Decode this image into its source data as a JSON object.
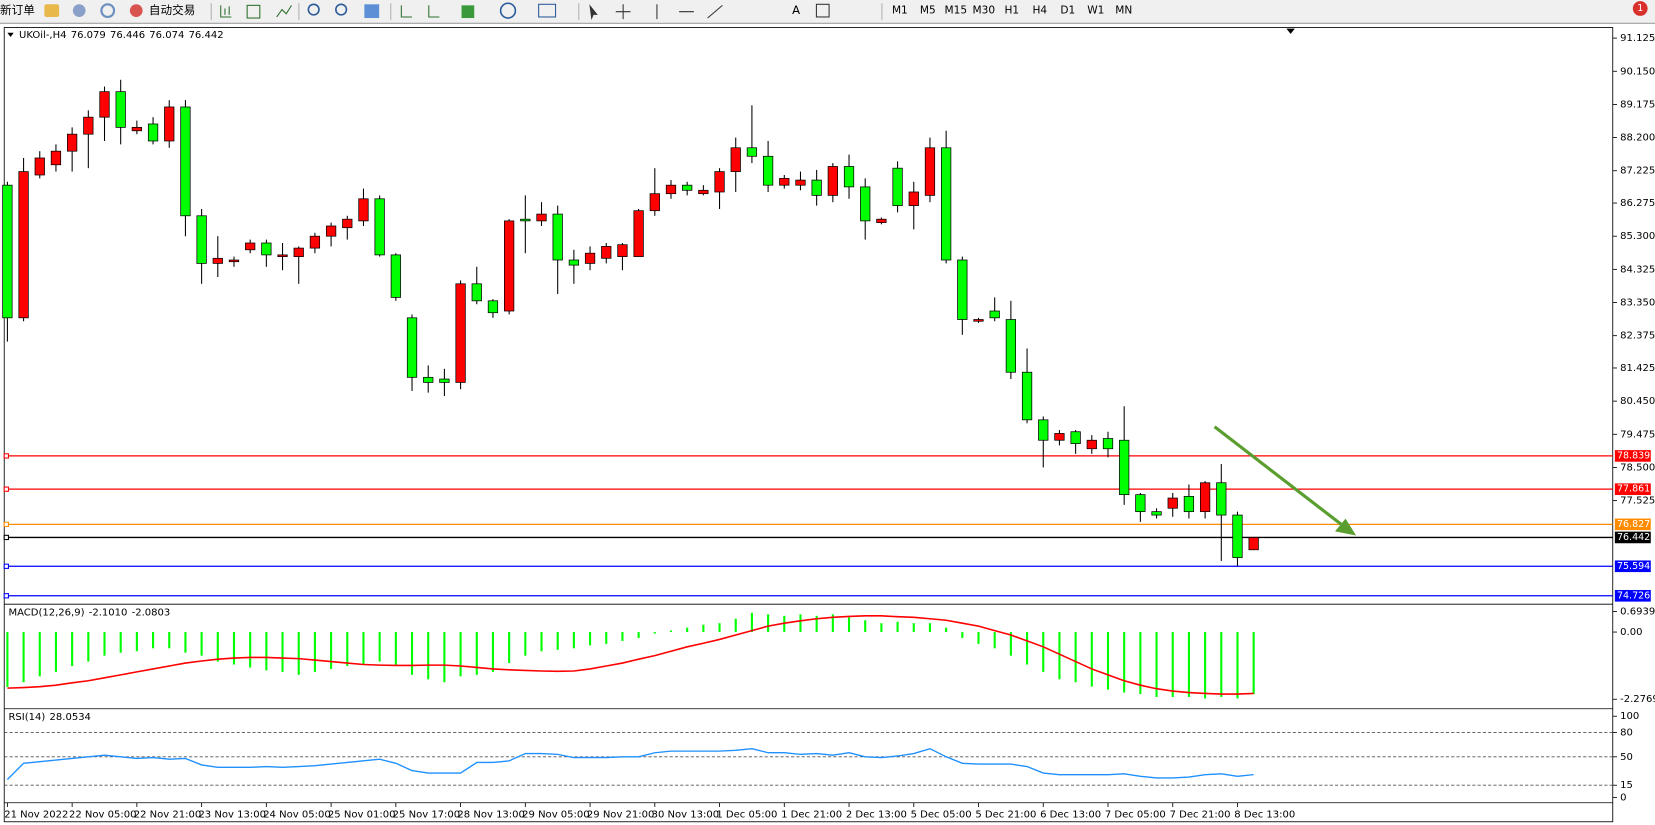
{
  "toolbar": {
    "new_order": "新订单",
    "auto_trading": "自动交易",
    "timeframes": [
      "M1",
      "M5",
      "M15",
      "M30",
      "H1",
      "H4",
      "D1",
      "W1",
      "MN"
    ]
  },
  "notifications": 1,
  "chart_data": [
    {
      "type": "candlestick",
      "title": "UKOil-,H4",
      "categories": [
        "21 Nov 2022",
        null,
        null,
        null,
        "22 Nov 05:00",
        null,
        null,
        null,
        "22 Nov 21:00",
        null,
        null,
        null,
        "23 Nov 13:00",
        null,
        null,
        null,
        "24 Nov 05:00",
        null,
        null,
        null,
        "25 Nov 01:00",
        null,
        null,
        null,
        "25 Nov 17:00",
        null,
        null,
        null,
        "28 Nov 13:00",
        null,
        null,
        null,
        "29 Nov 05:00",
        null,
        null,
        null,
        "29 Nov 21:00",
        null,
        null,
        null,
        "30 Nov 13:00",
        null,
        null,
        null,
        "1 Dec 05:00",
        null,
        null,
        null,
        "1 Dec 21:00",
        null,
        null,
        null,
        "2 Dec 13:00",
        null,
        null,
        null,
        "5 Dec 05:00",
        null,
        null,
        null,
        "5 Dec 21:00",
        null,
        null,
        null,
        "6 Dec 13:00",
        null,
        null,
        null,
        "7 Dec 05:00",
        null,
        null,
        null,
        "7 Dec 21:00",
        null,
        null,
        null,
        "8 Dec 13:00",
        null
      ],
      "open": [
        86.8,
        82.9,
        87.1,
        87.4,
        87.8,
        88.3,
        88.8,
        89.55,
        88.4,
        88.6,
        88.1,
        89.1,
        85.9,
        84.5,
        84.55,
        84.9,
        85.1,
        84.7,
        84.7,
        84.95,
        85.3,
        85.55,
        85.75,
        86.4,
        84.75,
        82.9,
        81.15,
        81.1,
        81.0,
        83.9,
        83.4,
        83.1,
        85.8,
        85.75,
        85.95,
        84.6,
        84.5,
        84.65,
        84.7,
        84.7,
        86.05,
        86.55,
        86.8,
        86.55,
        86.6,
        87.2,
        87.9,
        87.65,
        86.8,
        86.8,
        86.95,
        86.5,
        87.35,
        86.75,
        85.7,
        87.3,
        86.2,
        86.5,
        87.9,
        84.6,
        82.8,
        83.1,
        82.85,
        81.3,
        79.9,
        79.3,
        79.55,
        79.05,
        79.35,
        79.3,
        77.7,
        77.2,
        77.3,
        77.65,
        77.2,
        78.05,
        77.1,
        76.079
      ],
      "high": [
        86.9,
        87.6,
        87.8,
        88.0,
        88.5,
        89.0,
        89.7,
        89.9,
        88.7,
        88.8,
        89.3,
        89.3,
        86.1,
        85.3,
        84.7,
        85.2,
        85.2,
        85.1,
        85.0,
        85.4,
        85.7,
        85.9,
        86.7,
        86.5,
        84.8,
        83.0,
        81.5,
        81.4,
        84.0,
        84.4,
        83.45,
        85.8,
        86.5,
        86.3,
        86.2,
        84.9,
        85.0,
        85.1,
        85.1,
        86.1,
        87.3,
        86.95,
        86.9,
        86.8,
        87.3,
        88.2,
        89.15,
        88.1,
        87.1,
        87.2,
        87.25,
        87.45,
        87.7,
        87.0,
        85.85,
        87.5,
        86.9,
        88.2,
        88.4,
        84.7,
        82.9,
        83.5,
        83.4,
        82.0,
        80.0,
        79.6,
        79.6,
        79.45,
        79.55,
        80.3,
        77.75,
        77.3,
        77.75,
        78.0,
        78.1,
        78.6,
        77.2,
        76.446
      ],
      "low": [
        82.2,
        82.8,
        87.0,
        87.2,
        87.2,
        87.3,
        88.1,
        88.0,
        88.3,
        88.0,
        87.9,
        85.3,
        83.9,
        84.1,
        84.4,
        84.8,
        84.4,
        84.3,
        83.9,
        84.8,
        85.0,
        85.2,
        85.6,
        84.7,
        83.4,
        80.75,
        80.7,
        80.6,
        80.8,
        83.3,
        82.9,
        83.0,
        84.8,
        85.6,
        83.6,
        83.9,
        84.3,
        84.5,
        84.3,
        84.7,
        85.9,
        86.4,
        86.5,
        86.5,
        86.1,
        86.6,
        87.45,
        86.6,
        86.7,
        86.65,
        86.2,
        86.3,
        86.4,
        85.2,
        85.65,
        86.0,
        85.5,
        86.3,
        84.5,
        82.4,
        82.75,
        82.8,
        81.1,
        79.8,
        78.5,
        79.15,
        78.9,
        78.9,
        78.8,
        77.4,
        76.9,
        77.0,
        77.05,
        77.0,
        77.0,
        75.75,
        75.6,
        76.074
      ],
      "close": [
        82.9,
        87.2,
        87.6,
        87.8,
        88.3,
        88.8,
        89.55,
        88.5,
        88.5,
        88.1,
        89.1,
        85.9,
        84.5,
        84.65,
        84.6,
        85.1,
        84.75,
        84.75,
        84.95,
        85.3,
        85.6,
        85.8,
        86.4,
        84.75,
        83.5,
        81.15,
        81.0,
        81.0,
        83.9,
        83.4,
        83.05,
        85.75,
        85.75,
        85.95,
        84.6,
        84.45,
        84.8,
        85.0,
        85.05,
        86.05,
        86.55,
        86.8,
        86.65,
        86.65,
        87.2,
        87.9,
        87.65,
        86.8,
        87.0,
        86.95,
        86.5,
        87.35,
        86.75,
        85.75,
        85.8,
        86.2,
        86.6,
        87.9,
        84.6,
        82.85,
        82.85,
        82.9,
        81.3,
        79.9,
        79.3,
        79.5,
        79.2,
        79.3,
        79.05,
        77.7,
        77.2,
        77.1,
        77.6,
        77.2,
        78.05,
        77.1,
        75.85,
        76.442
      ],
      "up_color": "#ff0000",
      "down_color": "#00ff00",
      "ylim": [
        74.51,
        91.436
      ],
      "yticks": [
        91.125,
        {
          "value": 90.15,
          "label": "90.150"
        },
        89.175,
        {
          "value": 88.2,
          "label": "88.200"
        },
        87.225,
        86.275,
        {
          "value": 85.3,
          "label": "85.300"
        },
        84.325,
        {
          "value": 83.35,
          "label": "83.350"
        },
        82.375,
        81.425,
        {
          "value": 80.45,
          "label": "80.450"
        },
        79.475,
        {
          "value": 78.5,
          "label": "78.500"
        },
        77.525
      ],
      "levels": [
        {
          "value": 78.839,
          "color": "#ff0000"
        },
        {
          "value": 77.861,
          "color": "#ff0000"
        },
        {
          "value": 76.827,
          "color": "#ff8c00"
        },
        {
          "value": 76.442,
          "color": "#000000"
        },
        {
          "value": 75.594,
          "color": "#0000ff"
        },
        {
          "value": 74.726,
          "color": "#0000ff"
        }
      ]
    },
    {
      "type": "macd",
      "title": "MACD(12,26,9)",
      "series": [
        {
          "style": "histogram",
          "color": "#00ff00",
          "values": [
            -1.86,
            -1.7,
            -1.5,
            -1.35,
            -1.15,
            -1.0,
            -0.8,
            -0.7,
            -0.65,
            -0.55,
            -0.55,
            -0.7,
            -0.8,
            -1.0,
            -1.1,
            -1.2,
            -1.3,
            -1.35,
            -1.45,
            -1.35,
            -1.25,
            -1.15,
            -1.1,
            -1.0,
            -1.15,
            -1.45,
            -1.6,
            -1.7,
            -1.5,
            -1.45,
            -1.35,
            -1.05,
            -0.8,
            -0.65,
            -0.6,
            -0.55,
            -0.45,
            -0.4,
            -0.3,
            -0.2,
            -0.05,
            0.05,
            0.15,
            0.25,
            0.3,
            0.45,
            0.65,
            0.6,
            0.55,
            0.6,
            0.55,
            0.6,
            0.5,
            0.4,
            0.3,
            0.35,
            0.3,
            0.3,
            0.15,
            -0.2,
            -0.4,
            -0.55,
            -0.8,
            -1.1,
            -1.35,
            -1.6,
            -1.7,
            -1.85,
            -1.95,
            -2.05,
            -2.1,
            -2.2,
            -2.2,
            -2.2,
            -2.25,
            -2.2,
            -2.25,
            -2.101
          ],
          "value_labels": [
            null,
            null,
            null,
            null,
            null,
            null,
            null,
            null,
            null,
            null,
            null,
            null,
            null,
            null,
            null,
            null,
            null,
            null,
            null,
            null,
            null,
            null,
            null,
            null,
            null,
            null,
            null,
            null,
            null,
            null,
            null,
            null,
            null,
            null,
            null,
            null,
            null,
            null,
            null,
            null,
            null,
            null,
            null,
            null,
            null,
            null,
            null,
            null,
            null,
            null,
            null,
            null,
            null,
            null,
            null,
            null,
            null,
            null,
            null,
            null,
            null,
            null,
            null,
            null,
            null,
            null,
            null,
            null,
            null,
            null,
            null,
            null,
            null,
            null,
            null,
            null,
            null,
            "-2.1010"
          ]
        },
        {
          "style": "line",
          "color": "#ff0000",
          "values": [
            -1.9,
            -1.88,
            -1.85,
            -1.8,
            -1.72,
            -1.65,
            -1.55,
            -1.45,
            -1.35,
            -1.25,
            -1.15,
            -1.05,
            -0.98,
            -0.92,
            -0.88,
            -0.86,
            -0.86,
            -0.88,
            -0.9,
            -0.95,
            -1.0,
            -1.05,
            -1.1,
            -1.12,
            -1.13,
            -1.13,
            -1.12,
            -1.12,
            -1.15,
            -1.2,
            -1.25,
            -1.28,
            -1.3,
            -1.32,
            -1.33,
            -1.32,
            -1.25,
            -1.15,
            -1.05,
            -0.92,
            -0.8,
            -0.65,
            -0.5,
            -0.38,
            -0.25,
            -0.1,
            0.05,
            0.2,
            0.3,
            0.38,
            0.45,
            0.5,
            0.53,
            0.55,
            0.55,
            0.52,
            0.5,
            0.45,
            0.4,
            0.3,
            0.2,
            0.05,
            -0.1,
            -0.3,
            -0.5,
            -0.75,
            -1.0,
            -1.25,
            -1.45,
            -1.65,
            -1.8,
            -1.92,
            -2.0,
            -2.05,
            -2.08,
            -2.1,
            -2.1,
            -2.0803
          ]
        }
      ],
      "ylim": [
        -2.563,
        0.944
      ],
      "yticks": [
        0.6939,
        {
          "value": 0,
          "label": "0.00"
        },
        -2.2769
      ]
    },
    {
      "type": "rsi",
      "title": "RSI(14)",
      "color": "#1e90ff",
      "values": [
        22,
        42,
        44,
        46,
        48,
        50,
        52,
        50,
        48,
        49,
        47,
        48,
        40,
        37,
        37,
        37,
        38,
        37,
        38,
        39,
        41,
        43,
        45,
        47,
        42,
        33,
        30,
        30,
        30,
        43,
        43,
        45,
        54,
        54,
        53,
        49,
        49,
        49,
        50,
        50,
        55,
        57,
        57,
        57,
        57,
        58,
        60,
        55,
        55,
        53,
        54,
        52,
        55,
        50,
        49,
        51,
        54,
        60,
        50,
        42,
        41,
        41,
        41,
        38,
        30,
        28,
        28,
        28,
        28,
        29,
        26,
        24,
        24,
        25,
        28,
        29,
        26,
        28.0534
      ],
      "ylim": [
        -6.6,
        109.2
      ],
      "yticks": [
        100,
        80,
        50,
        15,
        0
      ],
      "levels": [
        80,
        50,
        15
      ]
    }
  ]
}
